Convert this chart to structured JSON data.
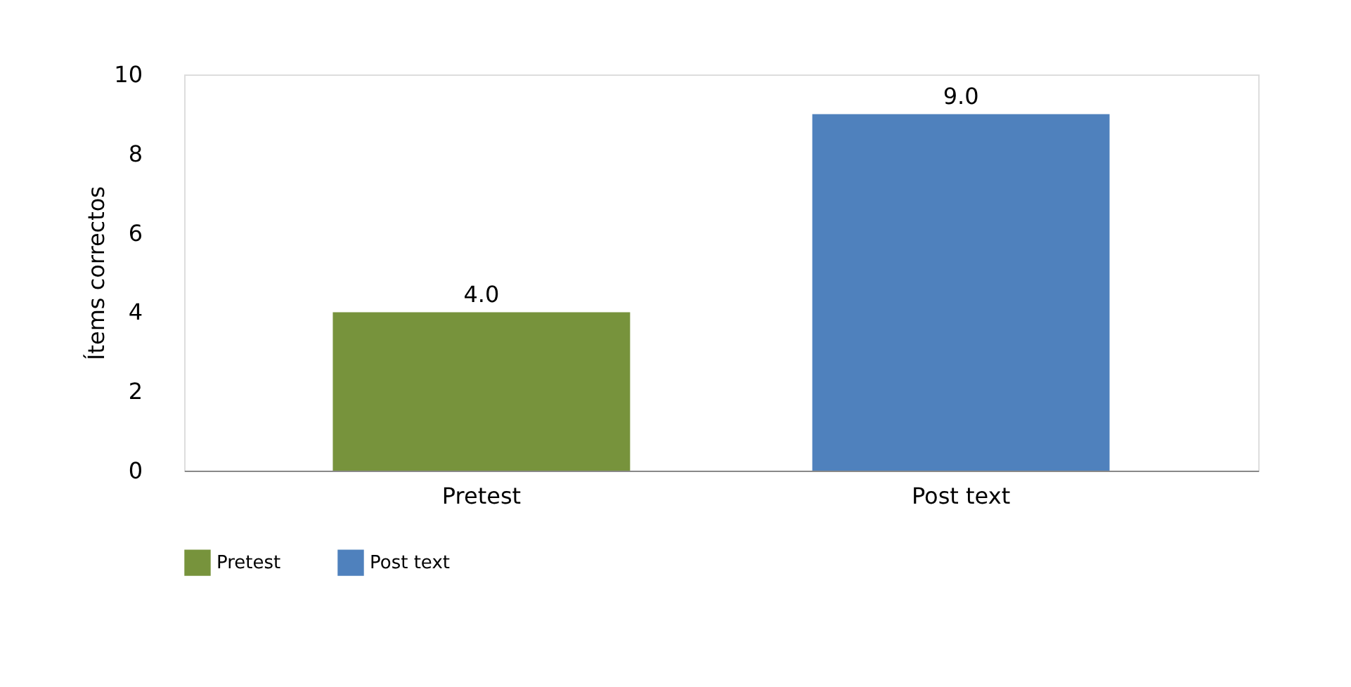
{
  "chart_data": {
    "type": "bar",
    "categories": [
      "Pretest",
      "Post text"
    ],
    "series": [
      {
        "name": "Pretest",
        "color": "#77933c",
        "values": [
          4.0,
          null
        ],
        "value_labels": [
          "4.0",
          null
        ]
      },
      {
        "name": "Post text",
        "color": "#4f81bd",
        "values": [
          null,
          9.0
        ],
        "value_labels": [
          null,
          "9.0"
        ]
      }
    ],
    "ylabel": "Ítems correctos",
    "ylim": [
      0,
      10
    ],
    "yticks": [
      0,
      2,
      4,
      6,
      8,
      10
    ],
    "grid": false,
    "legend": "bottom"
  }
}
